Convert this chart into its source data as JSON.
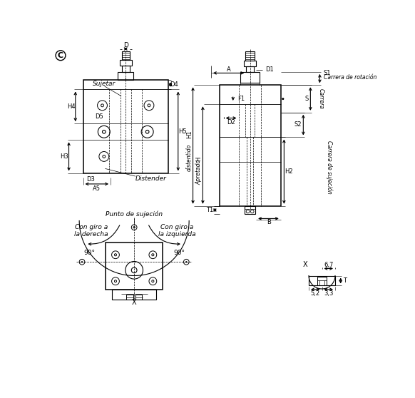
{
  "bg_color": "#ffffff",
  "line_color": "#000000",
  "circle_c": "C",
  "label_sujetar": "Sujetar",
  "label_distender": "Distender",
  "label_punto": "Punto de sujeción",
  "label_con_giro_der": "Con giro a\nla derecha",
  "label_con_giro_izq": "Con giro a\nla izquierda",
  "label_90_left": "90°",
  "label_90_right": "90°",
  "label_X": "X",
  "label_X2": "X",
  "label_H1": "H1",
  "label_distentido": "distentido",
  "label_H": "H",
  "label_apretado": "Apretado",
  "label_S1": "S1",
  "label_carrera_rot": "Carrera de rotación",
  "label_S": "S",
  "label_carrera": "Carrera",
  "label_S2": "S2",
  "label_carrera_suj": "Carrera de sujeción",
  "label_D": "D",
  "label_D1": "D1",
  "label_D2": "D2",
  "label_D3": "D3",
  "label_D4": "D4",
  "label_D5": "D5",
  "label_H2": "H2",
  "label_H3": "H3",
  "label_H4": "H4",
  "label_H5": "H5",
  "label_A": "A",
  "label_A5": "A5",
  "label_B": "B",
  "label_T1": "T1",
  "label_F1": "F1",
  "label_67": "6,7",
  "label_52": "5,2",
  "label_33": "3,3",
  "label_T": "T"
}
